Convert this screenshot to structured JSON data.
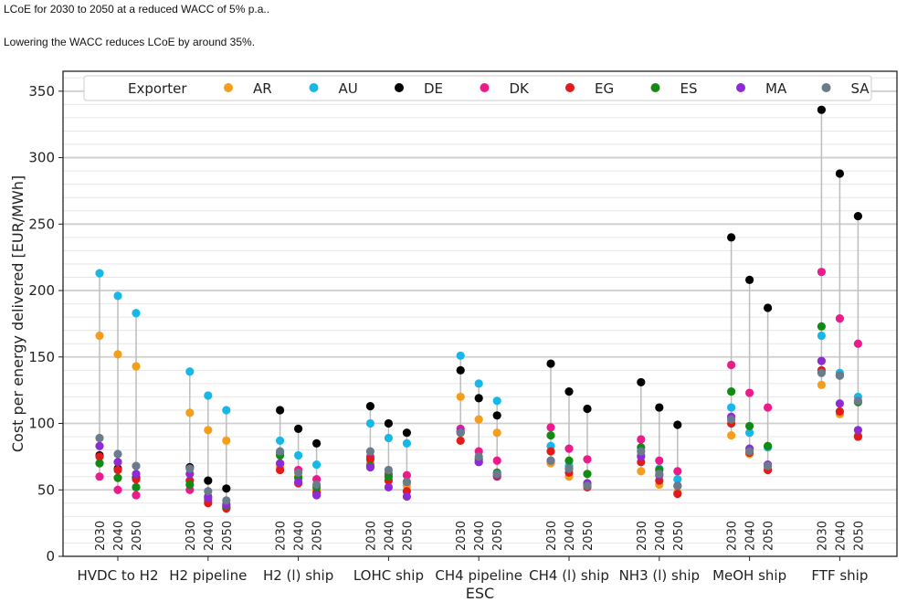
{
  "captions": {
    "line1": "LCoE for 2030 to 2050 at a reduced WACC of 5% p.a..",
    "line2": "Lowering the WACC reduces LCoE by around 35%."
  },
  "chart_data": {
    "type": "scatter",
    "title": "",
    "xlabel": "ESC",
    "ylabel": "Cost per energy delivered [EUR/MWh]",
    "ylim": [
      0,
      365
    ],
    "yticks": [
      0,
      50,
      100,
      150,
      200,
      250,
      300,
      350
    ],
    "grid": true,
    "legend_title": "Exporter",
    "legend_position": "top",
    "years": [
      "2030",
      "2040",
      "2050"
    ],
    "categories": [
      "HVDC to H2",
      "H2 pipeline",
      "H2 (l) ship",
      "LOHC ship",
      "CH4 pipeline",
      "CH4 (l) ship",
      "NH3 (l) ship",
      "MeOH ship",
      "FTF ship"
    ],
    "series": [
      {
        "name": "AR",
        "color": "#f59e1b",
        "values": [
          [
            166,
            152,
            143
          ],
          [
            108,
            95,
            87
          ],
          [
            68,
            60,
            50
          ],
          [
            70,
            61,
            53
          ],
          [
            120,
            103,
            93
          ],
          [
            70,
            60,
            53
          ],
          [
            64,
            54,
            48
          ],
          [
            91,
            77,
            67
          ],
          [
            129,
            107,
            91
          ]
        ]
      },
      {
        "name": "AU",
        "color": "#17b8e8",
        "values": [
          [
            213,
            196,
            183
          ],
          [
            139,
            121,
            110
          ],
          [
            87,
            76,
            69
          ],
          [
            100,
            89,
            85
          ],
          [
            151,
            130,
            117
          ],
          [
            83,
            68,
            55
          ],
          [
            76,
            66,
            58
          ],
          [
            112,
            93,
            82
          ],
          [
            166,
            138,
            120
          ]
        ]
      },
      {
        "name": "DE",
        "color": "#000000",
        "values": [
          [
            76,
            66,
            59
          ],
          [
            67,
            57,
            51
          ],
          [
            110,
            96,
            85
          ],
          [
            113,
            100,
            93
          ],
          [
            140,
            119,
            106
          ],
          [
            145,
            124,
            111
          ],
          [
            131,
            112,
            99
          ],
          [
            240,
            208,
            187
          ],
          [
            336,
            288,
            256
          ]
        ]
      },
      {
        "name": "DK",
        "color": "#ec1b8c",
        "values": [
          [
            60,
            50,
            46
          ],
          [
            50,
            42,
            37
          ],
          [
            78,
            65,
            58
          ],
          [
            75,
            62,
            61
          ],
          [
            96,
            79,
            72
          ],
          [
            97,
            81,
            73
          ],
          [
            88,
            72,
            64
          ],
          [
            144,
            123,
            112
          ],
          [
            214,
            179,
            160
          ]
        ]
      },
      {
        "name": "EG",
        "color": "#e31a1c",
        "values": [
          [
            75,
            65,
            58
          ],
          [
            57,
            40,
            36
          ],
          [
            65,
            55,
            48
          ],
          [
            73,
            57,
            49
          ],
          [
            87,
            71,
            60
          ],
          [
            79,
            63,
            52
          ],
          [
            71,
            57,
            47
          ],
          [
            100,
            78,
            65
          ],
          [
            140,
            109,
            90
          ]
        ]
      },
      {
        "name": "ES",
        "color": "#138a13",
        "values": [
          [
            70,
            59,
            52
          ],
          [
            54,
            45,
            38
          ],
          [
            76,
            59,
            52
          ],
          [
            68,
            60,
            56
          ],
          [
            93,
            73,
            63
          ],
          [
            91,
            72,
            62
          ],
          [
            82,
            65,
            53
          ],
          [
            124,
            98,
            83
          ],
          [
            173,
            136,
            116
          ]
        ]
      },
      {
        "name": "MA",
        "color": "#8e2ad6",
        "values": [
          [
            83,
            71,
            62
          ],
          [
            62,
            44,
            39
          ],
          [
            70,
            56,
            46
          ],
          [
            67,
            52,
            45
          ],
          [
            94,
            71,
            61
          ],
          [
            72,
            66,
            55
          ],
          [
            75,
            61,
            53
          ],
          [
            105,
            81,
            69
          ],
          [
            147,
            115,
            95
          ]
        ]
      },
      {
        "name": "SA",
        "color": "#6a7b8c",
        "values": [
          [
            89,
            77,
            68
          ],
          [
            66,
            49,
            42
          ],
          [
            79,
            63,
            54
          ],
          [
            79,
            65,
            56
          ],
          [
            93,
            75,
            62
          ],
          [
            72,
            66,
            53
          ],
          [
            79,
            62,
            53
          ],
          [
            103,
            79,
            68
          ],
          [
            138,
            136,
            117
          ]
        ]
      }
    ]
  }
}
